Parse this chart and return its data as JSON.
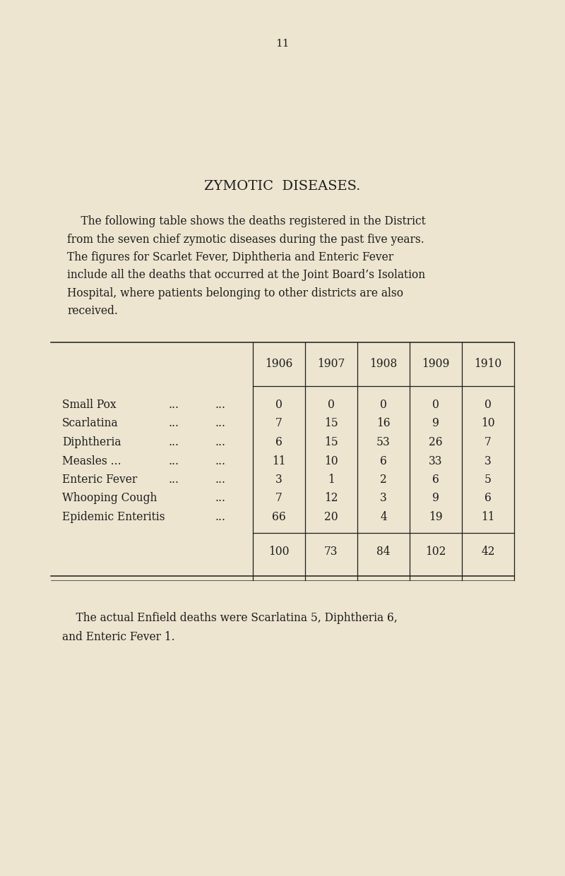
{
  "page_number": "11",
  "bg_color": "#ede5d0",
  "title": "ZYMOTIC  DISEASES.",
  "para_lines": [
    "    The following table shows the deaths registered in the District",
    "from the seven chief zymotic diseases during the past five years.",
    "The figures for Scarlet Fever, Diphtheria and Enteric Fever",
    "include all the deaths that occurred at the Joint Board’s Isolation",
    "Hospital, where patients belonging to other districts are also",
    "received."
  ],
  "years": [
    "1906",
    "1907",
    "1908",
    "1909",
    "1910"
  ],
  "diseases": [
    [
      "Small Pox",
      "...",
      "..."
    ],
    [
      "Scarlatina",
      "...",
      "..."
    ],
    [
      "Diphtheria",
      "...",
      "..."
    ],
    [
      "Measles ...",
      "...",
      "..."
    ],
    [
      "Enteric Fever",
      "...",
      "..."
    ],
    [
      "Whooping Cough",
      "",
      "..."
    ],
    [
      "Epidemic Enteritis",
      "",
      "..."
    ]
  ],
  "data": [
    [
      0,
      0,
      0,
      0,
      0
    ],
    [
      7,
      15,
      16,
      9,
      10
    ],
    [
      6,
      15,
      53,
      26,
      7
    ],
    [
      11,
      10,
      6,
      33,
      3
    ],
    [
      3,
      1,
      2,
      6,
      5
    ],
    [
      7,
      12,
      3,
      9,
      6
    ],
    [
      66,
      20,
      4,
      19,
      11
    ]
  ],
  "totals": [
    100,
    73,
    84,
    102,
    42
  ],
  "footer_lines": [
    "    The actual Enfield deaths were Scarlatina 5, Diphtheria 6,",
    "and Enteric Fever 1."
  ],
  "text_color": "#1c1c1c",
  "title_fontsize": 14,
  "body_fontsize": 11.2,
  "table_fontsize": 11.2,
  "page_num_fontsize": 11
}
